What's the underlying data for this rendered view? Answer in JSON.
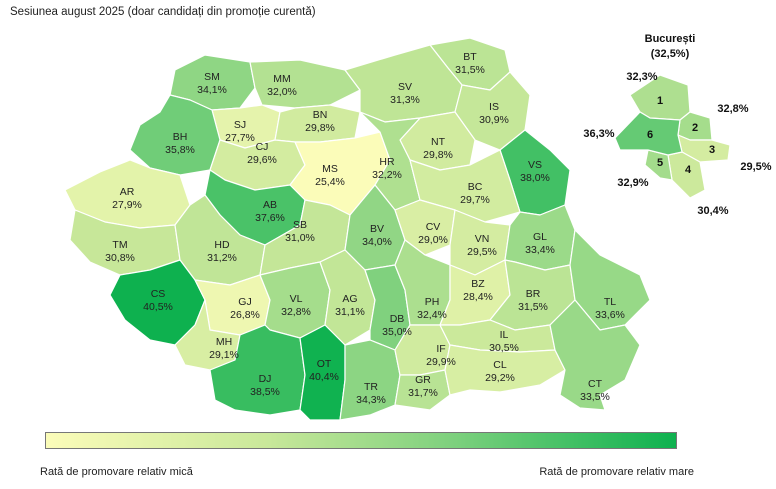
{
  "subtitle": "Sesiunea august 2025 (doar candidați din promoție curentă)",
  "legend": {
    "low_label": "Rată de promovare relativ mică",
    "high_label": "Rată de promovare relativ mare",
    "low_color": "#fbfcb9",
    "high_color": "#0eb14f"
  },
  "counties": [
    {
      "code": "SM",
      "value": "34,1%"
    },
    {
      "code": "MM",
      "value": "32,0%"
    },
    {
      "code": "BT",
      "value": "31,5%"
    },
    {
      "code": "SV",
      "value": "31,3%"
    },
    {
      "code": "SJ",
      "value": "27,7%"
    },
    {
      "code": "BN",
      "value": "29,8%"
    },
    {
      "code": "IS",
      "value": "30,9%"
    },
    {
      "code": "BH",
      "value": "35,8%"
    },
    {
      "code": "CJ",
      "value": "29,6%"
    },
    {
      "code": "NT",
      "value": "29,8%"
    },
    {
      "code": "MS",
      "value": "25,4%"
    },
    {
      "code": "HR",
      "value": "32,2%"
    },
    {
      "code": "VS",
      "value": "38,0%"
    },
    {
      "code": "AR",
      "value": "27,9%"
    },
    {
      "code": "AB",
      "value": "37,6%"
    },
    {
      "code": "BC",
      "value": "29,7%"
    },
    {
      "code": "TM",
      "value": "30,8%"
    },
    {
      "code": "HD",
      "value": "31,2%"
    },
    {
      "code": "SB",
      "value": "31,0%"
    },
    {
      "code": "BV",
      "value": "34,0%"
    },
    {
      "code": "CV",
      "value": "29,0%"
    },
    {
      "code": "VN",
      "value": "29,5%"
    },
    {
      "code": "GL",
      "value": "33,4%"
    },
    {
      "code": "CS",
      "value": "40,5%"
    },
    {
      "code": "GJ",
      "value": "26,8%"
    },
    {
      "code": "VL",
      "value": "32,8%"
    },
    {
      "code": "AG",
      "value": "31,1%"
    },
    {
      "code": "DB",
      "value": "35,0%"
    },
    {
      "code": "PH",
      "value": "32,4%"
    },
    {
      "code": "BZ",
      "value": "28,4%"
    },
    {
      "code": "BR",
      "value": "31,5%"
    },
    {
      "code": "TL",
      "value": "33,6%"
    },
    {
      "code": "MH",
      "value": "29,1%"
    },
    {
      "code": "IL",
      "value": "30,5%"
    },
    {
      "code": "IF",
      "value": "29,9%"
    },
    {
      "code": "CL",
      "value": "29,2%"
    },
    {
      "code": "DJ",
      "value": "38,5%"
    },
    {
      "code": "OT",
      "value": "40,4%"
    },
    {
      "code": "TR",
      "value": "34,3%"
    },
    {
      "code": "GR",
      "value": "31,7%"
    },
    {
      "code": "CT",
      "value": "33,5%"
    }
  ],
  "bucharest": {
    "title": "București",
    "total": "(32,5%)",
    "sectors": [
      {
        "num": "1",
        "value": "32,3%"
      },
      {
        "num": "2",
        "value": "32,8%"
      },
      {
        "num": "3",
        "value": "29,5%"
      },
      {
        "num": "4",
        "value": "30,4%"
      },
      {
        "num": "5",
        "value": "32,9%"
      },
      {
        "num": "6",
        "value": "36,3%"
      }
    ]
  }
}
